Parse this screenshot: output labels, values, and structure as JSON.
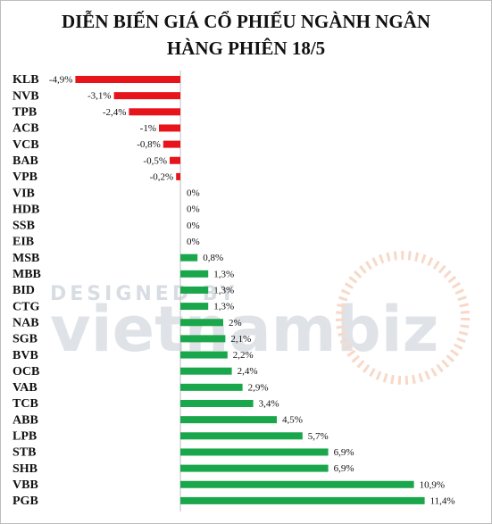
{
  "chart_data": {
    "type": "bar",
    "orientation": "horizontal",
    "title": "DIỄN BIẾN GIÁ CỔ PHIẾU NGÀNH NGÂN HÀNG PHIÊN 18/5",
    "watermark": [
      "DESIGNED BY",
      "vietnambiz"
    ],
    "categories": [
      "KLB",
      "NVB",
      "TPB",
      "ACB",
      "VCB",
      "BAB",
      "VPB",
      "VIB",
      "HDB",
      "SSB",
      "EIB",
      "MSB",
      "MBB",
      "BID",
      "CTG",
      "NAB",
      "SGB",
      "BVB",
      "OCB",
      "VAB",
      "TCB",
      "ABB",
      "LPB",
      "STB",
      "SHB",
      "VBB",
      "PGB"
    ],
    "values": [
      -4.9,
      -3.1,
      -2.4,
      -1,
      -0.8,
      -0.5,
      -0.2,
      0,
      0,
      0,
      0,
      0.8,
      1.3,
      1.3,
      1.3,
      2,
      2.1,
      2.2,
      2.4,
      2.9,
      3.4,
      4.5,
      5.7,
      6.9,
      6.9,
      10.9,
      11.4
    ],
    "value_labels": [
      "-4,9%",
      "-3,1%",
      "-2,4%",
      "-1%",
      "-0,8%",
      "-0,5%",
      "-0,2%",
      "0%",
      "0%",
      "0%",
      "0%",
      "0,8%",
      "1,3%",
      "1,3%",
      "1,3%",
      "2%",
      "2,1%",
      "2,2%",
      "2,4%",
      "2,9%",
      "3,4%",
      "4,5%",
      "5,7%",
      "6,9%",
      "6,9%",
      "10,9%",
      "11,4%"
    ],
    "negative_color": "#e8141b",
    "positive_color": "#1aa64a"
  }
}
